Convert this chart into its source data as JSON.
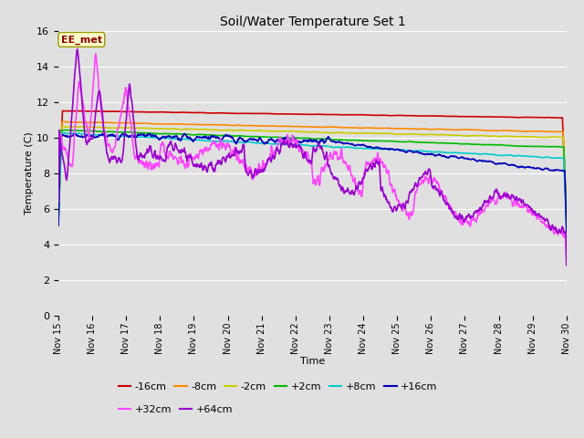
{
  "title": "Soil/Water Temperature Set 1",
  "xlabel": "Time",
  "ylabel": "Temperature (C)",
  "ylim": [
    0,
    16
  ],
  "yticks": [
    0,
    2,
    4,
    6,
    8,
    10,
    12,
    14,
    16
  ],
  "xlim": [
    0,
    15
  ],
  "plot_bg_color": "#e0e0e0",
  "annotation_text": "EE_met",
  "annotation_bg": "#ffffcc",
  "annotation_border": "#999900",
  "annotation_fg": "#880000",
  "series": {
    "-16cm": {
      "color": "#cc0000",
      "lw": 1.2
    },
    "-8cm": {
      "color": "#ff8800",
      "lw": 1.2
    },
    "-2cm": {
      "color": "#cccc00",
      "lw": 1.2
    },
    "+2cm": {
      "color": "#00bb00",
      "lw": 1.2
    },
    "+8cm": {
      "color": "#00cccc",
      "lw": 1.2
    },
    "+16cm": {
      "color": "#0000bb",
      "lw": 1.2
    },
    "+32cm": {
      "color": "#ff44ff",
      "lw": 1.2
    },
    "+64cm": {
      "color": "#9900cc",
      "lw": 1.2
    }
  },
  "xtick_labels": [
    "Nov 15",
    "Nov 16",
    "Nov 17",
    "Nov 18",
    "Nov 19",
    "Nov 20",
    "Nov 21",
    "Nov 22",
    "Nov 23",
    "Nov 24",
    "Nov 25",
    "Nov 26",
    "Nov 27",
    "Nov 28",
    "Nov 29",
    "Nov 30"
  ],
  "xtick_positions": [
    0,
    1,
    2,
    3,
    4,
    5,
    6,
    7,
    8,
    9,
    10,
    11,
    12,
    13,
    14,
    15
  ]
}
